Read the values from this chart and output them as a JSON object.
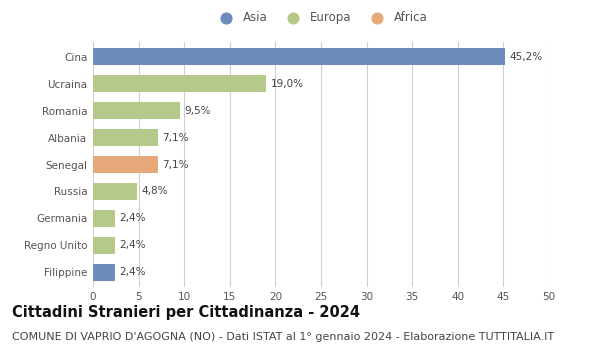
{
  "categories": [
    "Cina",
    "Ucraina",
    "Romania",
    "Albania",
    "Senegal",
    "Russia",
    "Germania",
    "Regno Unito",
    "Filippine"
  ],
  "values": [
    45.2,
    19.0,
    9.5,
    7.1,
    7.1,
    4.8,
    2.4,
    2.4,
    2.4
  ],
  "labels": [
    "45,2%",
    "19,0%",
    "9,5%",
    "7,1%",
    "7,1%",
    "4,8%",
    "2,4%",
    "2,4%",
    "2,4%"
  ],
  "colors": [
    "#6b8cba",
    "#b5c98a",
    "#b5c98a",
    "#b5c98a",
    "#e8a97a",
    "#b5c98a",
    "#b5c98a",
    "#b5c98a",
    "#6b8cba"
  ],
  "legend_labels": [
    "Asia",
    "Europa",
    "Africa"
  ],
  "legend_colors": [
    "#6b8cba",
    "#b5c98a",
    "#e8a97a"
  ],
  "xlim": [
    0,
    50
  ],
  "xticks": [
    0,
    5,
    10,
    15,
    20,
    25,
    30,
    35,
    40,
    45,
    50
  ],
  "title": "Cittadini Stranieri per Cittadinanza - 2024",
  "subtitle": "COMUNE DI VAPRIO D'AGOGNA (NO) - Dati ISTAT al 1° gennaio 2024 - Elaborazione TUTTITALIA.IT",
  "background_color": "#ffffff",
  "grid_color": "#d0d0d0",
  "bar_height": 0.62,
  "title_fontsize": 10.5,
  "subtitle_fontsize": 8,
  "label_fontsize": 7.5,
  "tick_fontsize": 7.5,
  "legend_fontsize": 8.5
}
